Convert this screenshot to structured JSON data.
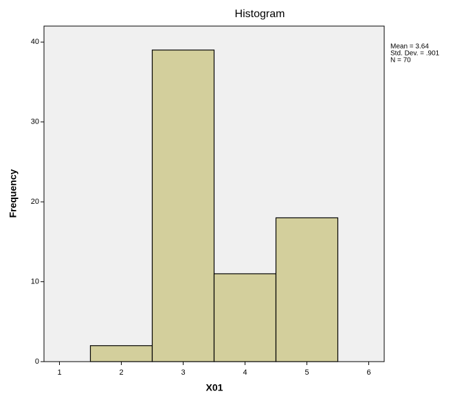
{
  "chart_data": {
    "type": "histogram",
    "title": "Histogram",
    "x_label": "X01",
    "y_label": "Frequency",
    "bins": [
      1.5,
      2.5,
      3.5,
      4.5,
      5.5
    ],
    "counts": [
      2,
      39,
      11,
      18
    ],
    "color": "#d3cf9c",
    "edge_color": "#000000",
    "plot_background": "#f0f0f0",
    "xlim": [
      0.75,
      6.25
    ],
    "xticks": [
      1,
      2,
      3,
      4,
      5,
      6
    ],
    "ylim": [
      0,
      42
    ],
    "yticks": [
      0,
      10,
      20,
      30,
      40
    ],
    "annotations": [
      "Mean = 3.64",
      "Std. Dev. = .901",
      "N = 70"
    ]
  }
}
